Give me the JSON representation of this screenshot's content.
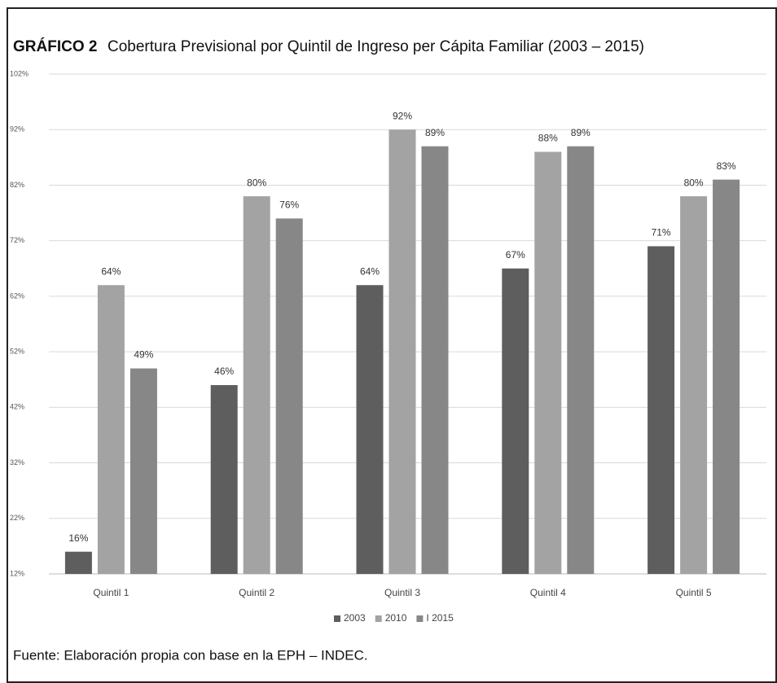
{
  "chart_data": {
    "type": "bar",
    "figure_label": "GRÁFICO 2",
    "title": "Cobertura Previsional por Quintil de Ingreso per Cápita Familiar (2003 – 2015)",
    "source": "Fuente: Elaboración propia con base en la EPH – INDEC.",
    "categories": [
      "Quintil 1",
      "Quintil 2",
      "Quintil 3",
      "Quintil 4",
      "Quintil 5"
    ],
    "series": [
      {
        "name": "2003",
        "color": "#5e5e5e",
        "values": [
          16,
          46,
          64,
          67,
          71
        ],
        "value_labels": [
          "16%",
          "46%",
          "64%",
          "67%",
          "71%"
        ]
      },
      {
        "name": "2010",
        "color": "#a3a3a3",
        "values": [
          64,
          80,
          92,
          88,
          80
        ],
        "value_labels": [
          "64%",
          "80%",
          "92%",
          "88%",
          "80%"
        ]
      },
      {
        "name": "I 2015",
        "color": "#878787",
        "values": [
          49,
          76,
          89,
          89,
          83
        ],
        "value_labels": [
          "49%",
          "76%",
          "89%",
          "89%",
          "83%"
        ]
      }
    ],
    "ylim": [
      12,
      102
    ],
    "yticks": [
      {
        "value": 12,
        "label": "12%"
      },
      {
        "value": 22,
        "label": "22%"
      },
      {
        "value": 32,
        "label": "32%"
      },
      {
        "value": 42,
        "label": "42%"
      },
      {
        "value": 52,
        "label": "52%"
      },
      {
        "value": 62,
        "label": "62%"
      },
      {
        "value": 72,
        "label": "72%"
      },
      {
        "value": 82,
        "label": "82%"
      },
      {
        "value": 92,
        "label": "92%"
      },
      {
        "value": 102,
        "label": "102%"
      }
    ],
    "grid": true,
    "legend": "bottom"
  }
}
